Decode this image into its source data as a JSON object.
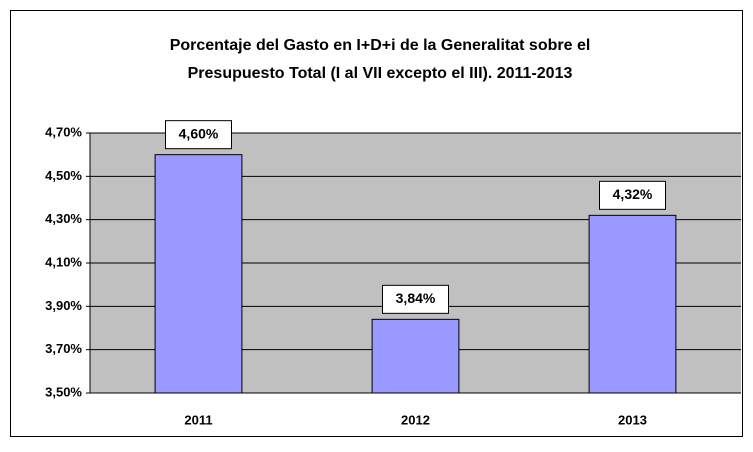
{
  "chart_data": {
    "type": "bar",
    "title": [
      "Porcentaje del Gasto en I+D+i de la Generalitat sobre el",
      "Presupuesto Total (I al VII excepto el III). 2011-2013"
    ],
    "categories": [
      "2011",
      "2012",
      "2013"
    ],
    "values": [
      4.6,
      3.84,
      4.32
    ],
    "value_labels": [
      "4,60%",
      "3,84%",
      "4,32%"
    ],
    "color": "#9999ff",
    "ylim": [
      3.5,
      4.7
    ],
    "yticks": [
      {
        "value": 3.5,
        "label": "3,50%"
      },
      {
        "value": 3.7,
        "label": "3,70%"
      },
      {
        "value": 3.9,
        "label": "3,90%"
      },
      {
        "value": 4.1,
        "label": "4,10%"
      },
      {
        "value": 4.3,
        "label": "4,30%"
      },
      {
        "value": 4.5,
        "label": "4,50%"
      },
      {
        "value": 4.7,
        "label": "4,70%"
      }
    ],
    "grid": true
  }
}
